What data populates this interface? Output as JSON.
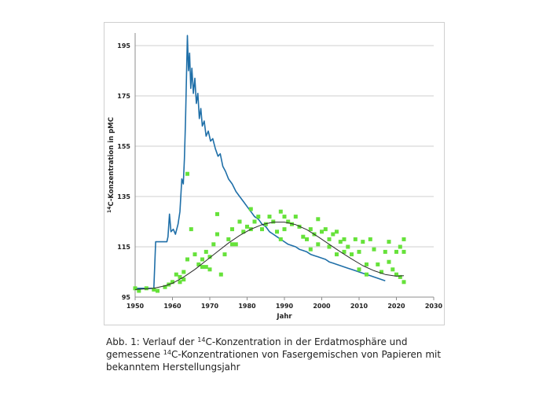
{
  "chart_data": {
    "type": "line",
    "xlabel": "Jahr",
    "ylabel_iso": "14",
    "ylabel_text": "C-Konzentration in pMC",
    "xlim": [
      1950,
      2030
    ],
    "ylim": [
      95,
      200
    ],
    "xticks": [
      1950,
      1960,
      1970,
      1980,
      1990,
      2000,
      2010,
      2020,
      2030
    ],
    "yticks": [
      95,
      115,
      135,
      155,
      175,
      195
    ],
    "grid": "horizontal",
    "colors": {
      "atmosphere": "#1f6fa8",
      "samples": "#66e23a",
      "fit": "#2a2a2a"
    },
    "series": [
      {
        "kind": "line",
        "points": [
          [
            1950,
            98.5
          ],
          [
            1955,
            98.5
          ],
          [
            1955.5,
            117
          ],
          [
            1958.5,
            117
          ],
          [
            1958.8,
            119
          ],
          [
            1959.2,
            128
          ],
          [
            1959.6,
            121
          ],
          [
            1960.2,
            122
          ],
          [
            1960.8,
            120
          ],
          [
            1961.5,
            124
          ],
          [
            1962.0,
            129
          ],
          [
            1962.5,
            142
          ],
          [
            1962.9,
            140
          ],
          [
            1963.2,
            150
          ],
          [
            1963.5,
            165
          ],
          [
            1963.8,
            185
          ],
          [
            1964.0,
            199
          ],
          [
            1964.3,
            185
          ],
          [
            1964.6,
            192
          ],
          [
            1964.9,
            178
          ],
          [
            1965.2,
            186
          ],
          [
            1965.6,
            176
          ],
          [
            1966.0,
            182
          ],
          [
            1966.4,
            172
          ],
          [
            1966.8,
            176
          ],
          [
            1967.2,
            166
          ],
          [
            1967.6,
            170
          ],
          [
            1968.0,
            163
          ],
          [
            1968.5,
            165
          ],
          [
            1969.0,
            159
          ],
          [
            1969.6,
            161
          ],
          [
            1970.2,
            157
          ],
          [
            1970.8,
            158
          ],
          [
            1971.5,
            154
          ],
          [
            1972.2,
            151
          ],
          [
            1972.8,
            152
          ],
          [
            1973.5,
            147
          ],
          [
            1974.2,
            145
          ],
          [
            1975.0,
            142
          ],
          [
            1976.0,
            140
          ],
          [
            1977.0,
            137
          ],
          [
            1978.0,
            135
          ],
          [
            1979.0,
            133
          ],
          [
            1980.0,
            131
          ],
          [
            1981.0,
            129
          ],
          [
            1982.0,
            127
          ],
          [
            1983.0,
            126
          ],
          [
            1984.0,
            124
          ],
          [
            1985.0,
            123
          ],
          [
            1986.0,
            121
          ],
          [
            1987.0,
            120
          ],
          [
            1988.0,
            119
          ],
          [
            1989.0,
            118
          ],
          [
            1990.0,
            117
          ],
          [
            1991.0,
            116
          ],
          [
            1992.0,
            115.5
          ],
          [
            1993.0,
            115
          ],
          [
            1994.0,
            114
          ],
          [
            1995.0,
            113.5
          ],
          [
            1996.0,
            113
          ],
          [
            1997.0,
            112
          ],
          [
            1998.0,
            111.5
          ],
          [
            1999.0,
            111
          ],
          [
            2000.0,
            110.5
          ],
          [
            2001.0,
            110
          ],
          [
            2002.0,
            109
          ],
          [
            2003.0,
            108.5
          ],
          [
            2004.0,
            108
          ],
          [
            2005.0,
            107.5
          ],
          [
            2006.0,
            107
          ],
          [
            2007.0,
            106.5
          ],
          [
            2008.0,
            106
          ],
          [
            2009.0,
            105.5
          ],
          [
            2010.0,
            105
          ],
          [
            2011.0,
            104.5
          ],
          [
            2012.0,
            104
          ],
          [
            2013.0,
            103.5
          ],
          [
            2014.0,
            103
          ],
          [
            2015.0,
            102.5
          ],
          [
            2016.0,
            102
          ],
          [
            2017.0,
            101.5
          ]
        ]
      },
      {
        "kind": "scatter",
        "points": [
          [
            1950,
            98.5
          ],
          [
            1951,
            97.5
          ],
          [
            1953,
            98.5
          ],
          [
            1955,
            98
          ],
          [
            1956,
            97.5
          ],
          [
            1958,
            99
          ],
          [
            1959,
            100
          ],
          [
            1960,
            101
          ],
          [
            1961,
            104
          ],
          [
            1962,
            103
          ],
          [
            1962,
            101
          ],
          [
            1963,
            105
          ],
          [
            1963,
            102
          ],
          [
            1964,
            110
          ],
          [
            1964,
            144
          ],
          [
            1965,
            122
          ],
          [
            1966,
            112
          ],
          [
            1967,
            108
          ],
          [
            1968,
            107
          ],
          [
            1968,
            110
          ],
          [
            1969,
            113
          ],
          [
            1969,
            107
          ],
          [
            1970,
            111
          ],
          [
            1970,
            106
          ],
          [
            1971,
            116
          ],
          [
            1972,
            128
          ],
          [
            1972,
            120
          ],
          [
            1973,
            104
          ],
          [
            1974,
            112
          ],
          [
            1975,
            118
          ],
          [
            1976,
            122
          ],
          [
            1976,
            116
          ],
          [
            1977,
            116
          ],
          [
            1978,
            125
          ],
          [
            1979,
            121
          ],
          [
            1980,
            123
          ],
          [
            1981,
            122
          ],
          [
            1981,
            130
          ],
          [
            1982,
            125
          ],
          [
            1983,
            127
          ],
          [
            1984,
            122
          ],
          [
            1985,
            124
          ],
          [
            1986,
            127
          ],
          [
            1987,
            125
          ],
          [
            1988,
            121
          ],
          [
            1989,
            129
          ],
          [
            1989,
            118
          ],
          [
            1990,
            127
          ],
          [
            1990,
            122
          ],
          [
            1991,
            125
          ],
          [
            1992,
            124
          ],
          [
            1993,
            127
          ],
          [
            1994,
            123
          ],
          [
            1995,
            119
          ],
          [
            1996,
            118
          ],
          [
            1997,
            122
          ],
          [
            1997,
            114
          ],
          [
            1998,
            120
          ],
          [
            1999,
            126
          ],
          [
            1999,
            116
          ],
          [
            2000,
            121
          ],
          [
            2001,
            122
          ],
          [
            2002,
            118
          ],
          [
            2002,
            115
          ],
          [
            2003,
            120
          ],
          [
            2004,
            112
          ],
          [
            2004,
            121
          ],
          [
            2005,
            117
          ],
          [
            2006,
            113
          ],
          [
            2006,
            118
          ],
          [
            2007,
            115
          ],
          [
            2008,
            112
          ],
          [
            2009,
            118
          ],
          [
            2010,
            106
          ],
          [
            2010,
            113
          ],
          [
            2011,
            117
          ],
          [
            2012,
            108
          ],
          [
            2012,
            104
          ],
          [
            2013,
            118
          ],
          [
            2014,
            114
          ],
          [
            2015,
            108
          ],
          [
            2016,
            105
          ],
          [
            2017,
            113
          ],
          [
            2018,
            117
          ],
          [
            2018,
            109
          ],
          [
            2019,
            106
          ],
          [
            2020,
            113
          ],
          [
            2020,
            104
          ],
          [
            2021,
            115
          ],
          [
            2021,
            103
          ],
          [
            2022,
            118
          ],
          [
            2022,
            113
          ],
          [
            2022,
            101
          ]
        ]
      },
      {
        "kind": "line",
        "points": [
          [
            1950,
            98
          ],
          [
            1955,
            98.5
          ],
          [
            1958,
            99.5
          ],
          [
            1960,
            100.5
          ],
          [
            1963,
            103
          ],
          [
            1966,
            106
          ],
          [
            1969,
            109.5
          ],
          [
            1972,
            113
          ],
          [
            1975,
            116.5
          ],
          [
            1978,
            119.5
          ],
          [
            1981,
            122
          ],
          [
            1984,
            123.8
          ],
          [
            1987,
            124.8
          ],
          [
            1990,
            124.8
          ],
          [
            1993,
            123.8
          ],
          [
            1996,
            121.8
          ],
          [
            1999,
            119
          ],
          [
            2002,
            116
          ],
          [
            2005,
            113
          ],
          [
            2008,
            110.2
          ],
          [
            2011,
            107.5
          ],
          [
            2014,
            105.5
          ],
          [
            2017,
            104
          ],
          [
            2020,
            103.3
          ],
          [
            2022,
            103.5
          ]
        ]
      }
    ]
  },
  "caption": {
    "prefix": "Abb. 1: Verlauf der ",
    "sup1": "14",
    "mid": "C-Konzentration in der Erdatmosphäre und gemessene ",
    "sup2": "14",
    "rest": "C-Konzentrationen von Fasergemischen von Papieren mit bekanntem Herstellungsjahr"
  }
}
